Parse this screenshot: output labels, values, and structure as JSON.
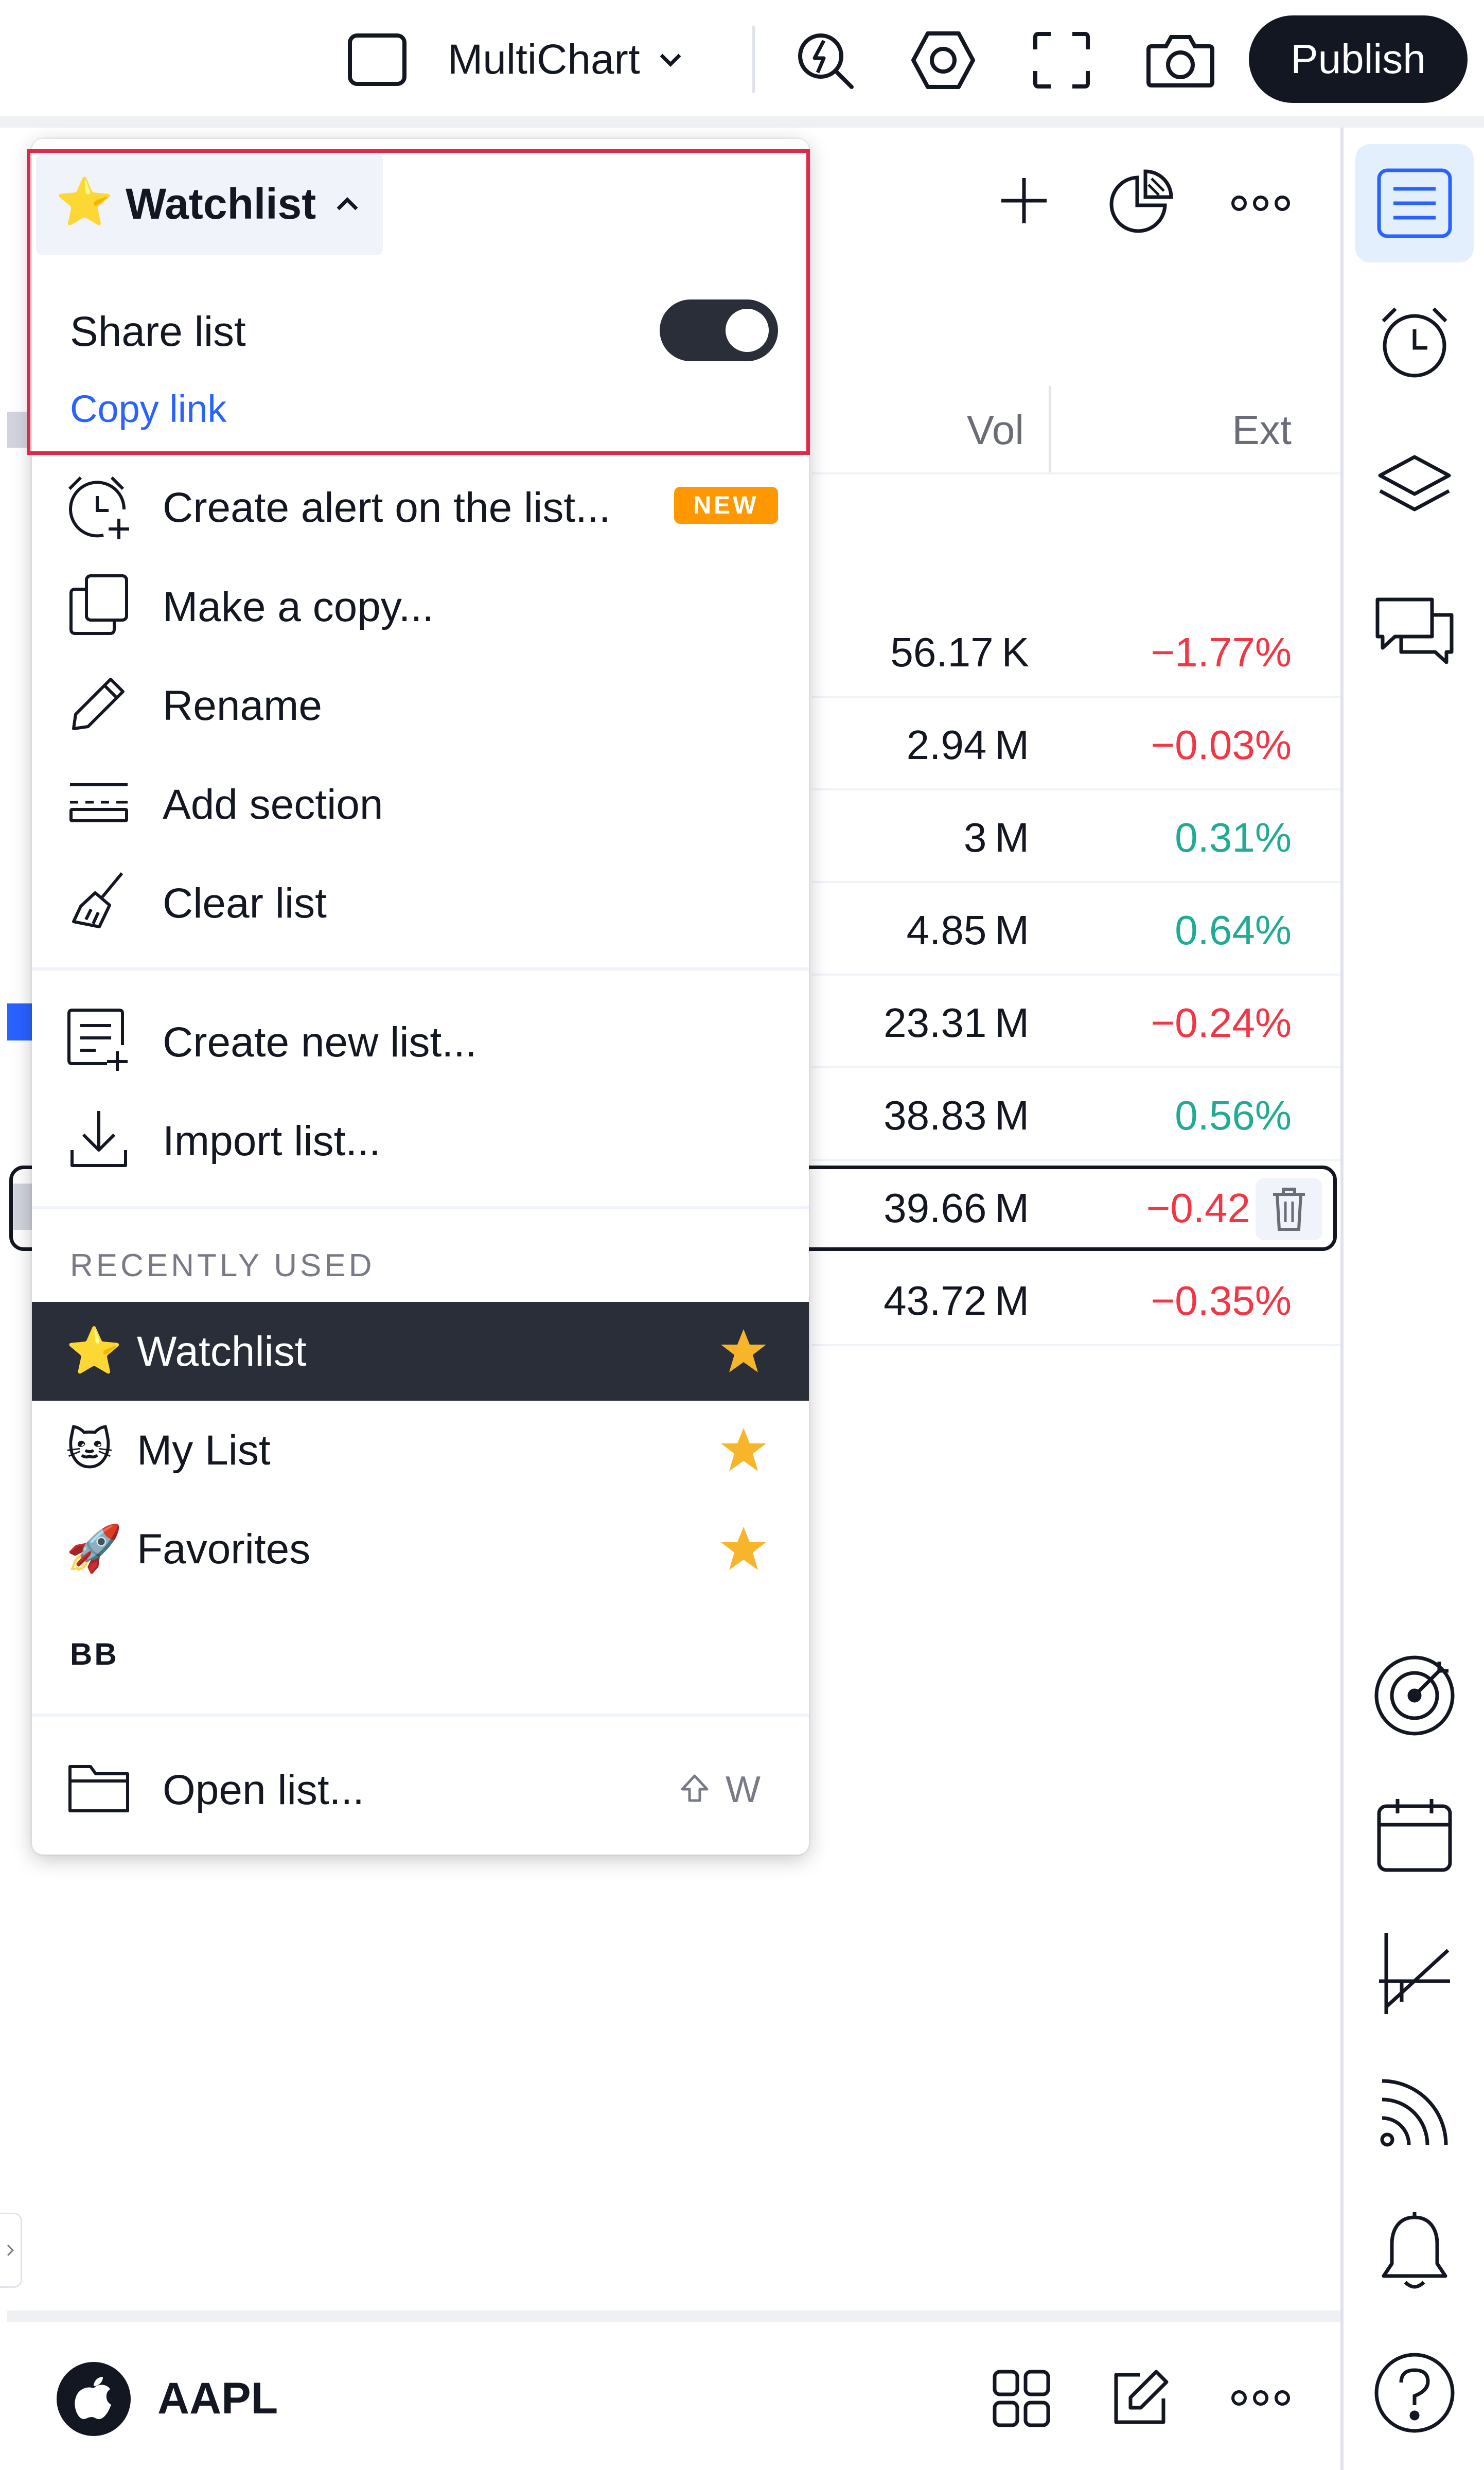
{
  "toolbar": {
    "layout_label": "MultiChart",
    "publish_label": "Publish"
  },
  "watchlist": {
    "title": "Watchlist",
    "columns": {
      "vol": "Vol",
      "ext": "Ext"
    },
    "rows": [
      {
        "vol": "56.17 K",
        "ext": "−1.77%",
        "dir": "neg"
      },
      {
        "vol": "2.94 M",
        "ext": "−0.03%",
        "dir": "neg"
      },
      {
        "vol": "3 M",
        "ext": "0.31%",
        "dir": "pos"
      },
      {
        "vol": "4.85 M",
        "ext": "0.64%",
        "dir": "pos"
      },
      {
        "vol": "23.31 M",
        "ext": "−0.24%",
        "dir": "neg"
      },
      {
        "vol": "38.83 M",
        "ext": "0.56%",
        "dir": "pos"
      },
      {
        "vol": "39.66 M",
        "ext": "−0.42",
        "dir": "neg"
      },
      {
        "vol": "43.72 M",
        "ext": "−0.35%",
        "dir": "neg"
      }
    ]
  },
  "menu": {
    "share_list_label": "Share list",
    "share_list_enabled": true,
    "copy_link_label": "Copy link",
    "items": [
      {
        "label": "Create alert on the list...",
        "icon": "alarm-plus-icon",
        "badge": "NEW"
      },
      {
        "label": "Make a copy...",
        "icon": "copy-icon"
      },
      {
        "label": "Rename",
        "icon": "pencil-icon"
      },
      {
        "label": "Add section",
        "icon": "section-icon"
      },
      {
        "label": "Clear list",
        "icon": "broom-icon"
      }
    ],
    "items2": [
      {
        "label": "Create new list...",
        "icon": "new-list-icon"
      },
      {
        "label": "Import list...",
        "icon": "import-icon"
      }
    ],
    "recently_used_label": "RECENTLY USED",
    "recent": [
      {
        "emoji": "⭐",
        "label": "Watchlist",
        "active": true
      },
      {
        "emoji": "🐱",
        "label": "My List",
        "active": false
      },
      {
        "emoji": "🚀",
        "label": "Favorites",
        "active": false
      }
    ],
    "section_bb": "BB",
    "open_list_label": "Open list...",
    "open_list_shortcut_key": "W"
  },
  "bottom": {
    "symbol": "AAPL"
  },
  "colors": {
    "accent": "#2962ff",
    "negative": "#f23645",
    "positive": "#22ab94",
    "star": "#f7b52c",
    "highlight_border": "#e0284a"
  }
}
